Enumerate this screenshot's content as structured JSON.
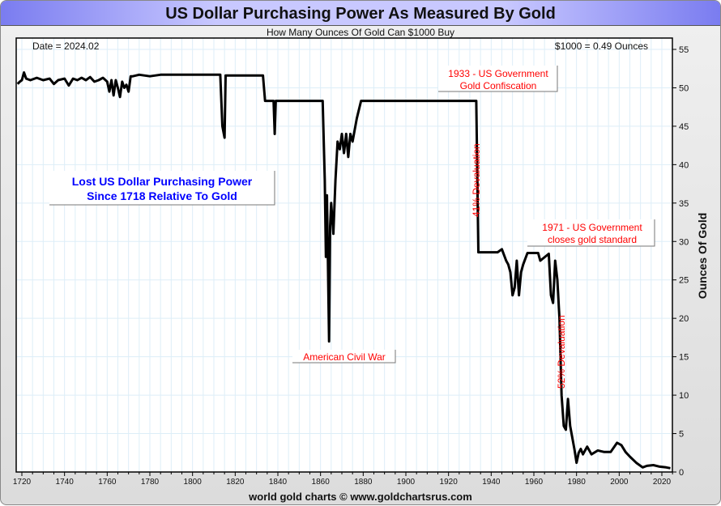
{
  "chart_data": {
    "type": "line",
    "title": "US Dollar Purchasing Power As Measured By Gold",
    "subtitle": "How Many Ounces Of Gold Can $1000 Buy",
    "ylabel": "Ounces Of Gold",
    "xlabel": "",
    "xlim": [
      1718,
      2025
    ],
    "ylim": [
      0,
      55
    ],
    "y_axis_side": "right",
    "grid": true,
    "x_ticks": [
      1720,
      1740,
      1760,
      1780,
      1800,
      1820,
      1840,
      1860,
      1880,
      1900,
      1920,
      1940,
      1960,
      1980,
      2000,
      2020
    ],
    "y_ticks": [
      0,
      5,
      10,
      15,
      20,
      25,
      30,
      35,
      40,
      45,
      50,
      55
    ],
    "line_color": "#000000",
    "series": [
      {
        "x": [
          1718,
          1719,
          1720,
          1721,
          1722,
          1724,
          1727,
          1730,
          1733,
          1735,
          1737,
          1740,
          1742,
          1744,
          1746,
          1748,
          1750,
          1752,
          1754,
          1756,
          1758,
          1760,
          1761,
          1762,
          1763,
          1764,
          1765,
          1766,
          1767,
          1768,
          1769,
          1770,
          1771,
          1772,
          1775,
          1780,
          1785,
          1790,
          1800,
          1813,
          1814,
          1815,
          1815.5,
          1816,
          1820,
          1833,
          1834,
          1838,
          1838.5,
          1839,
          1861,
          1862,
          1862.5,
          1863,
          1864,
          1864.5,
          1865,
          1866,
          1867,
          1868,
          1869,
          1870,
          1871,
          1872,
          1873,
          1874,
          1875,
          1877,
          1879,
          1900,
          1933,
          1934,
          1943,
          1945,
          1947,
          1948,
          1949,
          1950,
          1951,
          1952,
          1953,
          1954,
          1955,
          1957,
          1962,
          1963,
          1967,
          1968,
          1969,
          1970,
          1971,
          1972,
          1973,
          1974,
          1975,
          1976,
          1977,
          1978,
          1979,
          1980,
          1981,
          1982,
          1983,
          1984,
          1985,
          1987,
          1990,
          1993,
          1996,
          1999,
          2001,
          2003,
          2005,
          2008,
          2011,
          2013,
          2016,
          2019,
          2022,
          2024
        ],
        "values": [
          50.5,
          50.8,
          51,
          52,
          51.2,
          51,
          51.3,
          51,
          51.2,
          50.5,
          51,
          51.2,
          50.3,
          51.2,
          51,
          51.3,
          51,
          51.4,
          50.8,
          51,
          51.3,
          50.8,
          49.5,
          51,
          49,
          51,
          50,
          48.8,
          50.8,
          50,
          50.4,
          49.5,
          51.5,
          51.5,
          51.7,
          51.5,
          51.7,
          51.7,
          51.7,
          51.7,
          45,
          43.5,
          51.6,
          51.6,
          51.6,
          51.6,
          48.3,
          48.3,
          44,
          48.3,
          48.3,
          38,
          28,
          36,
          17,
          32,
          35,
          31,
          38,
          43,
          42,
          44,
          41.5,
          44,
          41,
          44,
          43,
          46,
          48.3,
          48.3,
          48.3,
          28.6,
          28.6,
          29,
          27.5,
          27,
          26,
          23,
          24,
          27.5,
          23,
          26,
          27,
          28.5,
          28.5,
          27.5,
          28.4,
          23,
          22,
          27.5,
          25,
          20,
          10,
          6,
          5.5,
          9.5,
          6,
          4.5,
          3,
          1.2,
          2.5,
          3,
          2.3,
          2.8,
          3.3,
          2.3,
          2.8,
          2.6,
          2.6,
          3.8,
          3.5,
          2.6,
          2,
          1.2,
          0.6,
          0.8,
          0.9,
          0.7,
          0.6,
          0.5
        ]
      }
    ],
    "annotations": {
      "date": "Date = 2024.02",
      "current": "$1000 = 0.49 Ounces",
      "lost": [
        "Lost US Dollar Purchasing Power",
        "Since 1718 Relative To Gold"
      ],
      "confiscation": [
        "1933 - US Government",
        "Gold Confiscation"
      ],
      "gold_standard": [
        "1971 - US Government",
        "closes gold standard"
      ],
      "civil_war": "American Civil War",
      "devaluation_41": "41% Devaluation",
      "devaluation_52": "52% Devaluation"
    },
    "footer": "world gold charts © www.goldchartsrus.com",
    "annotation_color": "#ff0000",
    "headline_color": "#0000ff"
  }
}
